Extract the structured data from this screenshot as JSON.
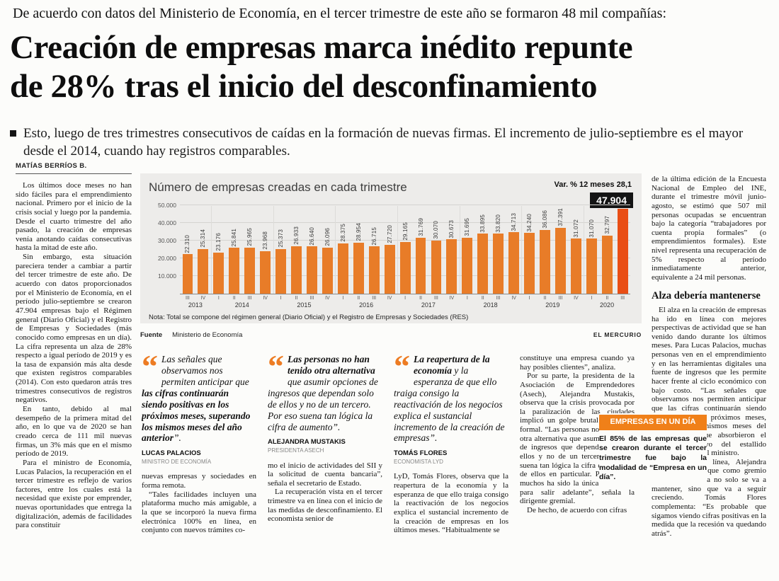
{
  "masthead": {
    "kicker": "De acuerdo con datos del Ministerio de Economía, en el tercer trimestre de este año se formaron 48 mil compañías:",
    "headline_line1": "Creación de empresas marca inédito repunte",
    "headline_line2": "de 28% tras el inicio del desconfinamiento",
    "deck": "Esto, luego de tres trimestres consecutivos de caídas en la formación de nuevas firmas. El incremento de julio-septiembre es el mayor desde el 2014, cuando hay registros comparables.",
    "byline": "MATÍAS BERRÍOS B."
  },
  "left_column": {
    "paragraphs": [
      "Los últimos doce meses no han sido fáciles para el emprendimiento nacional. Primero por el inicio de la crisis social y luego por la pandemia. Desde el cuarto trimestre del año pasado, la creación de empresas venía anotando caídas consecutivas hasta la mitad de este año.",
      "Sin embargo, esta situación pareciera tender a cambiar a partir del tercer trimestre de este año. De acuerdo con datos proporcionados por el Ministerio de Economía, en el período julio-septiembre se crearon 47.904 empresas bajo el Régimen general (Diario Oficial) y el Registro de Empresas y Sociedades (más conocido como empresas en un día). La cifra representa un alza de 28% respecto a igual período de 2019 y es la tasa de expansión más alta desde que existen registros comparables (2014). Con esto quedaron atrás tres trimestres consecutivos de registros negativos.",
      "En tanto, debido al mal desempeño de la primera mitad del año, en lo que va de 2020 se han creado cerca de 111 mil nuevas firmas, un 3% más que en el mismo período de 2019.",
      "Para el ministro de Economía, Lucas Palacios, la recuperación en el tercer trimestre es reflejo de varios factores, entre los cuales está la necesidad que existe por emprender, nuevas oportunidades que entrega la digitalización, además de facilidades para constituir"
    ]
  },
  "chart": {
    "title": "Número de empresas creadas en cada trimestre",
    "var_label": "Var. % 12 meses 28,1",
    "highlight_value": "47.904",
    "note": "Nota: Total se compone del régimen general (Diario Oficial) y el Registro de Empresas y Sociedades (RES)",
    "source_label": "Fuente",
    "source": "Ministerio de Economía",
    "credit": "EL MERCURIO",
    "colors": {
      "bar": "#e87c28",
      "bar_highlight": "#e94e15",
      "background": "#edecea"
    }
  },
  "chart_data": {
    "type": "bar",
    "title": "Número de empresas creadas en cada trimestre",
    "x_quarters": [
      "III",
      "IV",
      "I",
      "II",
      "III",
      "IV",
      "I",
      "II",
      "III",
      "IV",
      "I",
      "II",
      "III",
      "IV",
      "I",
      "II",
      "III",
      "IV",
      "I",
      "II",
      "III",
      "IV",
      "I",
      "II",
      "III",
      "IV",
      "I",
      "II",
      "III"
    ],
    "year_groups": [
      {
        "year": "2013",
        "count": 2
      },
      {
        "year": "2014",
        "count": 4
      },
      {
        "year": "2015",
        "count": 4
      },
      {
        "year": "2016",
        "count": 4
      },
      {
        "year": "2017",
        "count": 4
      },
      {
        "year": "2018",
        "count": 4
      },
      {
        "year": "2019",
        "count": 4
      },
      {
        "year": "2020",
        "count": 3
      }
    ],
    "values": [
      22310,
      25314,
      23176,
      25841,
      25965,
      23968,
      25373,
      26933,
      26640,
      26096,
      28375,
      28954,
      26715,
      27720,
      29165,
      31769,
      30070,
      30673,
      31695,
      33895,
      33820,
      34713,
      34240,
      36086,
      37391,
      31072,
      31070,
      32797,
      47904
    ],
    "labels": [
      "22.310",
      "25.314",
      "23.176",
      "25.841",
      "25.965",
      "23.968",
      "25.373",
      "26.933",
      "26.640",
      "26.096",
      "28.375",
      "28.954",
      "26.715",
      "27.720",
      "29.165",
      "31.769",
      "30.070",
      "30.673",
      "31.695",
      "33.895",
      "33.820",
      "34.713",
      "34.240",
      "36.086",
      "37.391",
      "31.072",
      "31.070",
      "32.797",
      "47.904"
    ],
    "ylim": [
      0,
      50000
    ],
    "yticks": [
      "50.000",
      "40.000",
      "30.000",
      "20.000",
      "10.000"
    ],
    "highlight_index": 28,
    "grid": "horizontal",
    "legend": "none"
  },
  "quotes": [
    {
      "pre": "Las señales que observamos nos permiten anticipar que ",
      "bold": "las cifras continuarán siendo positivas en los próximos meses, superando los mismos meses del año anterior",
      "post": "”.",
      "name": "LUCAS PALACIOS",
      "role": "MINISTRO DE ECONOMÍA"
    },
    {
      "pre": "",
      "bold": "Las personas no han tenido otra alternativa",
      "post": " que asumir opciones de ingresos que dependan solo de ellos y no de un tercero. Por eso suena tan lógica la cifra de aumento”.",
      "name": "ALEJANDRA MUSTAKIS",
      "role": "PRESIDENTA ASECH"
    },
    {
      "pre": "",
      "bold": "La reapertura de la economía",
      "post": " y la esperanza de que ello traiga consigo la reactivación de los negocios explica el sustancial incremento de la creación de empresas”.",
      "name": "TOMÁS FLORES",
      "role": "ECONOMISTA LYD"
    }
  ],
  "columns": {
    "under_quote_1": [
      "nuevas empresas y sociedades en forma remota.",
      "“Tales facilidades incluyen una plataforma mucho más amigable, a la que se incorporó la nueva firma electrónica 100% en línea, en conjunto con nuevos trámites co-"
    ],
    "under_quote_2": [
      "mo el inicio de actividades del SII y la solicitud de cuenta bancaria”, señala el secretario de Estado.",
      "La recuperación vista en el tercer trimestre va en línea con el inicio de las medidas de desconfinamiento. El economista senior de"
    ],
    "under_quote_3": [
      "LyD, Tomás Flores, observa que la reapertura de la economía y la esperanza de que ello traiga consigo la reactivación de los negocios explica el sustancial incremento de la creación de empresas en los últimos meses. “Habitualmente se"
    ],
    "text_column": [
      "constituye una empresa cuando ya hay posibles clientes”, analiza.",
      "Por su parte, la presidenta de la Asociación de Emprendedores (Asech), Alejandra Mustakis, observa que la crisis provocada por la paralización de las ciudades implicó un golpe brutal al empleo formal. “Las personas no han tenido otra alternativa que asumir opciones de ingresos que dependan solo de ellos y no de un tercero. Por eso suena tan lógica la cifra de aumento de ellos en particular. Porque para muchos ha sido la única alternativa para salir adelante”, señala la dirigente gremial.",
      "De hecho, de acuerdo con cifras"
    ]
  },
  "right_column": {
    "top_paragraphs": [
      "de la última edición de la Encuesta Nacional de Empleo del INE, durante el trimestre móvil junio-agosto, se estimó que 507 mil personas ocupadas se encuentran bajo la categoría “trabajadores por cuenta propia formales” (o emprendimientos formales). Este nivel representa una recuperación de 5% respecto al período inmediatamente anterior, equivalente a 24 mil personas."
    ],
    "subhead": "Alza debería mantenerse",
    "bottom_paragraphs": [
      "El alza en la creación de empresas ha ido en línea con mejores perspectivas de actividad que se han venido dando durante los últimos meses. Para Lucas Palacios, muchas personas ven en el emprendimiento y en las herramientas digitales una fuente de ingresos que les permite hacer frente al ciclo económico con bajo costo. “Las señales que observamos nos permiten anticipar que las cifras continuarán siendo positivas en los próximos meses, superando los mismos meses del año anterior, que absorbieron el impacto negativo del estallido social”, anticipa el ministro.",
      "En la misma línea, Alejandra Mustakis señala que como gremio creen que la cifra no solo se va a mantener, sino que va a seguir creciendo. Tomás Flores complementa: “Es probable que sigamos viendo cifras positivas en la medida que la recesión va quedando atrás”."
    ]
  },
  "inset_box": {
    "tag": "EMPRESAS EN UN DÍA",
    "text": "El 85% de las empresas que se crearon durante el tercer trimestre fue bajo la modalidad de “Empresa en un día”."
  }
}
